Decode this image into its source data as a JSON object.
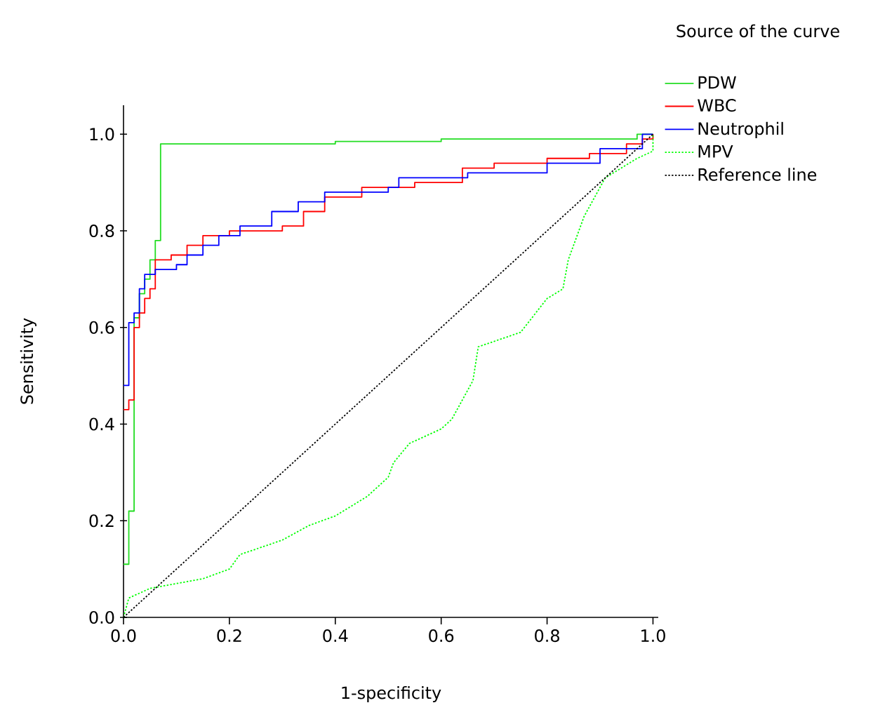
{
  "chart_data": {
    "type": "step",
    "xlabel": "1-specificity",
    "ylabel": "Sensitivity",
    "legend_title": "Source of the curve",
    "legend": "right",
    "xlim": [
      0,
      1.01
    ],
    "ylim": [
      0,
      1.06
    ],
    "xticks": [
      {
        "value": 0,
        "label": "0.0"
      },
      {
        "value": 0.2,
        "label": "0.2"
      },
      {
        "value": 0.4,
        "label": "0.4"
      },
      {
        "value": 0.6,
        "label": "0.6"
      },
      {
        "value": 0.8,
        "label": "0.8"
      },
      {
        "value": 1,
        "label": "1.0"
      }
    ],
    "yticks": [
      {
        "value": 0,
        "label": "0.0"
      },
      {
        "value": 0.2,
        "label": "0.2"
      },
      {
        "value": 0.4,
        "label": "0.4"
      },
      {
        "value": 0.6,
        "label": "0.6"
      },
      {
        "value": 0.8,
        "label": "0.8"
      },
      {
        "value": 1,
        "label": "1.0"
      }
    ],
    "series": [
      {
        "name": "PDW",
        "line_style": "solid",
        "color": "#22dd22",
        "x": [
          0,
          0.01,
          0.02,
          0.03,
          0.04,
          0.05,
          0.06,
          0.07,
          0.4,
          0.6,
          0.97,
          1.0
        ],
        "values": [
          0.11,
          0.22,
          0.62,
          0.67,
          0.7,
          0.74,
          0.78,
          0.98,
          0.985,
          0.99,
          1.0,
          1.0
        ]
      },
      {
        "name": "WBC",
        "line_style": "solid",
        "color": "#ff0000",
        "x": [
          0,
          0.01,
          0.02,
          0.03,
          0.04,
          0.05,
          0.06,
          0.09,
          0.12,
          0.15,
          0.2,
          0.3,
          0.34,
          0.38,
          0.45,
          0.55,
          0.64,
          0.7,
          0.8,
          0.88,
          0.95,
          0.98,
          1.0
        ],
        "values": [
          0.43,
          0.45,
          0.6,
          0.63,
          0.66,
          0.68,
          0.74,
          0.75,
          0.77,
          0.79,
          0.8,
          0.81,
          0.84,
          0.87,
          0.89,
          0.9,
          0.93,
          0.94,
          0.95,
          0.96,
          0.98,
          0.99,
          1.0
        ]
      },
      {
        "name": "Neutrophil",
        "line_style": "solid",
        "color": "#0000ff",
        "x": [
          0,
          0.01,
          0.02,
          0.03,
          0.04,
          0.06,
          0.1,
          0.12,
          0.15,
          0.18,
          0.22,
          0.28,
          0.33,
          0.38,
          0.5,
          0.52,
          0.65,
          0.8,
          0.9,
          0.98,
          1.0
        ],
        "values": [
          0.48,
          0.61,
          0.63,
          0.68,
          0.71,
          0.72,
          0.73,
          0.75,
          0.77,
          0.79,
          0.81,
          0.84,
          0.86,
          0.88,
          0.89,
          0.91,
          0.92,
          0.94,
          0.97,
          1.0,
          1.0
        ]
      },
      {
        "name": "MPV",
        "type": "line",
        "line_style": "dotted",
        "color": "#00ff00",
        "x": [
          0,
          0.01,
          0.05,
          0.15,
          0.2,
          0.22,
          0.3,
          0.35,
          0.4,
          0.46,
          0.5,
          0.51,
          0.54,
          0.6,
          0.62,
          0.66,
          0.67,
          0.75,
          0.8,
          0.83,
          0.84,
          0.87,
          0.91,
          0.97,
          1.0,
          1.0
        ],
        "values": [
          0,
          0.04,
          0.06,
          0.08,
          0.1,
          0.13,
          0.16,
          0.19,
          0.21,
          0.25,
          0.29,
          0.32,
          0.36,
          0.39,
          0.41,
          0.49,
          0.56,
          0.59,
          0.66,
          0.68,
          0.74,
          0.83,
          0.91,
          0.95,
          0.965,
          1.0
        ]
      },
      {
        "name": "Reference line",
        "type": "line",
        "line_style": "dotted",
        "color": "#000000",
        "x": [
          0,
          1
        ],
        "values": [
          0,
          1
        ]
      }
    ]
  }
}
